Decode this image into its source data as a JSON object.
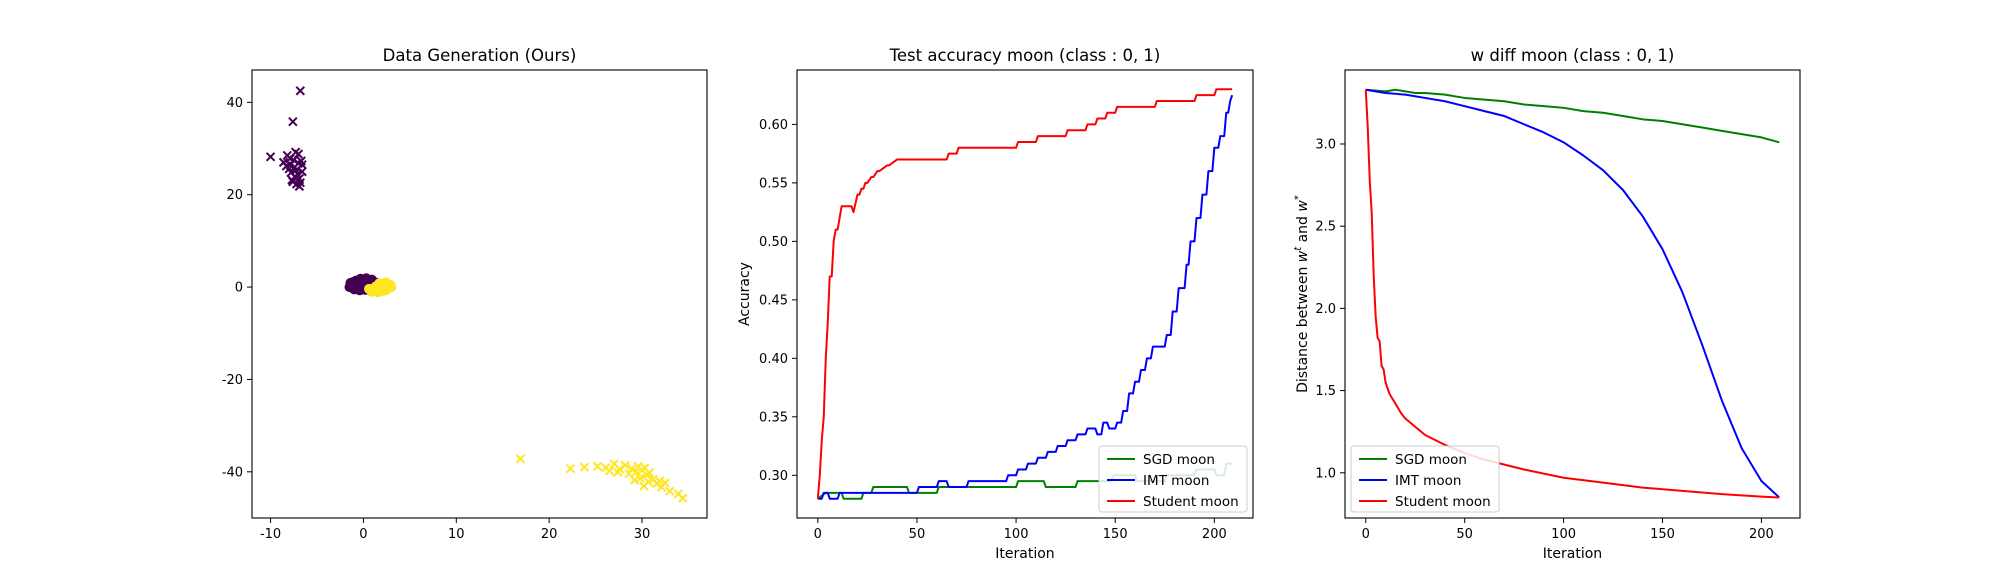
{
  "chart_data": [
    {
      "type": "scatter",
      "title": "Data Generation (Ours)",
      "xlabel": "",
      "ylabel": "",
      "xlim": [
        -12,
        37
      ],
      "ylim": [
        -50,
        47
      ],
      "xticks": [
        -10,
        0,
        10,
        20,
        30
      ],
      "yticks": [
        -40,
        -20,
        0,
        20,
        40
      ],
      "grid": false,
      "series": [
        {
          "marker": "o",
          "color": "#440154",
          "points": [
            [
              -1.2,
              0.6
            ],
            [
              -0.8,
              1.4
            ],
            [
              -0.3,
              1.8
            ],
            [
              0.3,
              1.9
            ],
            [
              0.9,
              1.6
            ],
            [
              1.3,
              1.0
            ],
            [
              -1.5,
              0.0
            ],
            [
              -1.0,
              -0.5
            ],
            [
              -0.4,
              -0.7
            ],
            [
              0.2,
              -0.6
            ],
            [
              0.7,
              -0.2
            ],
            [
              -0.6,
              0.4
            ],
            [
              0.0,
              0.9
            ],
            [
              0.5,
              1.2
            ],
            [
              -1.1,
              1.1
            ],
            [
              -0.2,
              0.2
            ],
            [
              1.0,
              0.4
            ],
            [
              -1.4,
              0.9
            ]
          ]
        },
        {
          "marker": "o",
          "color": "#fde725",
          "points": [
            [
              0.6,
              -0.4
            ],
            [
              1.1,
              -0.9
            ],
            [
              1.6,
              -1.1
            ],
            [
              2.2,
              -0.8
            ],
            [
              2.7,
              -0.2
            ],
            [
              2.9,
              0.5
            ],
            [
              2.4,
              1.0
            ],
            [
              1.9,
              0.3
            ],
            [
              1.3,
              0.1
            ],
            [
              0.9,
              -1.0
            ],
            [
              1.7,
              0.8
            ],
            [
              2.5,
              -0.6
            ],
            [
              1.4,
              -0.5
            ],
            [
              2.1,
              0.6
            ],
            [
              3.0,
              0.0
            ]
          ]
        },
        {
          "marker": "x",
          "color": "#440154",
          "points": [
            [
              -10,
              28.2
            ],
            [
              -6.8,
              42.5
            ],
            [
              -7.6,
              35.8
            ],
            [
              -8.6,
              27
            ],
            [
              -8.2,
              28.5
            ],
            [
              -7.9,
              26.5
            ],
            [
              -7.5,
              27.5
            ],
            [
              -7.3,
              25.2
            ],
            [
              -7.0,
              26.8
            ],
            [
              -6.7,
              27.3
            ],
            [
              -7.8,
              24.8
            ],
            [
              -7.4,
              23.9
            ],
            [
              -7.1,
              24.5
            ],
            [
              -6.9,
              23.5
            ],
            [
              -7.6,
              22.8
            ],
            [
              -7.2,
              22.3
            ],
            [
              -6.8,
              22.6
            ],
            [
              -7.0,
              28.8
            ],
            [
              -8.0,
              25.6
            ],
            [
              -7.3,
              29.2
            ],
            [
              -6.6,
              25.0
            ],
            [
              -7.7,
              23.2
            ],
            [
              -6.9,
              21.8
            ],
            [
              -7.4,
              26.0
            ],
            [
              -8.3,
              26.2
            ],
            [
              -7.9,
              27.8
            ],
            [
              -6.6,
              26.5
            ]
          ]
        },
        {
          "marker": "x",
          "color": "#fde725",
          "points": [
            [
              16.9,
              -37.2
            ],
            [
              22.3,
              -39.3
            ],
            [
              23.8,
              -39.0
            ],
            [
              25.2,
              -38.8
            ],
            [
              26.1,
              -39.1
            ],
            [
              27.0,
              -38.3
            ],
            [
              27.6,
              -39.4
            ],
            [
              28.2,
              -38.6
            ],
            [
              28.9,
              -39.3
            ],
            [
              29.4,
              -40.0
            ],
            [
              30.0,
              -39.6
            ],
            [
              30.5,
              -40.6
            ],
            [
              29.8,
              -41.4
            ],
            [
              30.7,
              -42.2
            ],
            [
              31.2,
              -41.6
            ],
            [
              31.6,
              -42.6
            ],
            [
              30.2,
              -43.1
            ],
            [
              32.1,
              -43.3
            ],
            [
              33.0,
              -44.2
            ],
            [
              33.9,
              -44.8
            ],
            [
              34.4,
              -45.7
            ],
            [
              27.4,
              -40.1
            ],
            [
              28.6,
              -40.4
            ],
            [
              29.2,
              -41.8
            ],
            [
              30.8,
              -40.2
            ],
            [
              31.9,
              -42.0
            ],
            [
              26.5,
              -39.8
            ],
            [
              29.6,
              -38.8
            ],
            [
              30.3,
              -39.2
            ],
            [
              32.5,
              -42.4
            ]
          ]
        }
      ]
    },
    {
      "type": "line",
      "title": "Test accuracy moon (class : 0, 1)",
      "xlabel": "Iteration",
      "ylabel": "Accuracy",
      "xlim": [
        -10.5,
        219.5
      ],
      "ylim": [
        0.2635,
        0.6465
      ],
      "xticks": [
        0,
        50,
        100,
        150,
        200
      ],
      "yticks": [
        0.3,
        0.35,
        0.4,
        0.45,
        0.5,
        0.55,
        0.6
      ],
      "grid": false,
      "legend": "lower-right",
      "series": [
        {
          "name": "SGD moon",
          "color": "#008000",
          "x": [
            0,
            4,
            12,
            13,
            22,
            23,
            27,
            28,
            45,
            46,
            60,
            61,
            70,
            71,
            85,
            86,
            100,
            101,
            114,
            115,
            130,
            131,
            148,
            149,
            160,
            161,
            175,
            176,
            190,
            191,
            200,
            201,
            205,
            206,
            209
          ],
          "y": [
            0.28,
            0.285,
            0.285,
            0.28,
            0.28,
            0.285,
            0.285,
            0.29,
            0.29,
            0.285,
            0.285,
            0.29,
            0.29,
            0.29,
            0.29,
            0.29,
            0.29,
            0.295,
            0.295,
            0.29,
            0.29,
            0.295,
            0.295,
            0.3,
            0.3,
            0.295,
            0.295,
            0.3,
            0.3,
            0.305,
            0.305,
            0.3,
            0.3,
            0.31,
            0.31
          ]
        },
        {
          "name": "IMT moon",
          "color": "#0000ff",
          "x": [
            0,
            2,
            3,
            5,
            6,
            10,
            11,
            20,
            21,
            35,
            36,
            50,
            51,
            60,
            61,
            65,
            66,
            75,
            76,
            85,
            86,
            95,
            96,
            100,
            101,
            105,
            106,
            110,
            111,
            115,
            116,
            120,
            121,
            125,
            126,
            130,
            131,
            135,
            136,
            140,
            141,
            143,
            144,
            146,
            147,
            150,
            151,
            153,
            154,
            156,
            157,
            159,
            160,
            162,
            163,
            165,
            166,
            168,
            169,
            171,
            172,
            175,
            176,
            178,
            179,
            181,
            182,
            185,
            186,
            187,
            188,
            190,
            191,
            193,
            194,
            196,
            197,
            199,
            200,
            202,
            203,
            205,
            206,
            207,
            208,
            209
          ],
          "y": [
            0.28,
            0.28,
            0.285,
            0.285,
            0.28,
            0.28,
            0.285,
            0.285,
            0.285,
            0.285,
            0.285,
            0.285,
            0.29,
            0.29,
            0.295,
            0.295,
            0.29,
            0.29,
            0.295,
            0.295,
            0.295,
            0.295,
            0.3,
            0.3,
            0.305,
            0.305,
            0.31,
            0.31,
            0.315,
            0.315,
            0.32,
            0.32,
            0.325,
            0.325,
            0.33,
            0.33,
            0.335,
            0.335,
            0.34,
            0.34,
            0.335,
            0.335,
            0.345,
            0.345,
            0.34,
            0.34,
            0.345,
            0.345,
            0.355,
            0.355,
            0.37,
            0.37,
            0.38,
            0.38,
            0.39,
            0.39,
            0.4,
            0.4,
            0.41,
            0.41,
            0.41,
            0.41,
            0.42,
            0.42,
            0.44,
            0.44,
            0.46,
            0.46,
            0.48,
            0.48,
            0.5,
            0.5,
            0.52,
            0.52,
            0.54,
            0.54,
            0.56,
            0.56,
            0.58,
            0.58,
            0.59,
            0.59,
            0.61,
            0.61,
            0.62,
            0.625
          ]
        },
        {
          "name": "Student moon",
          "color": "#ff0000",
          "x": [
            0,
            1,
            2,
            3,
            4,
            5,
            6,
            7,
            8,
            9,
            10,
            11,
            12,
            13,
            14,
            15,
            16,
            17,
            18,
            20,
            21,
            22,
            23,
            24,
            25,
            27,
            28,
            30,
            31,
            35,
            36,
            40,
            41,
            45,
            46,
            65,
            66,
            70,
            71,
            100,
            101,
            110,
            111,
            125,
            126,
            135,
            136,
            140,
            141,
            145,
            146,
            150,
            151,
            165,
            166,
            170,
            171,
            190,
            191,
            200,
            201,
            209
          ],
          "y": [
            0.28,
            0.3,
            0.33,
            0.35,
            0.4,
            0.43,
            0.47,
            0.47,
            0.5,
            0.51,
            0.51,
            0.52,
            0.53,
            0.53,
            0.53,
            0.53,
            0.53,
            0.53,
            0.525,
            0.54,
            0.54,
            0.545,
            0.545,
            0.55,
            0.55,
            0.555,
            0.555,
            0.56,
            0.56,
            0.565,
            0.565,
            0.57,
            0.57,
            0.57,
            0.57,
            0.57,
            0.575,
            0.575,
            0.58,
            0.58,
            0.585,
            0.585,
            0.59,
            0.59,
            0.595,
            0.595,
            0.6,
            0.6,
            0.605,
            0.605,
            0.61,
            0.61,
            0.615,
            0.615,
            0.615,
            0.615,
            0.62,
            0.62,
            0.625,
            0.625,
            0.63,
            0.63
          ]
        }
      ]
    },
    {
      "type": "line",
      "title": "w diff moon (class : 0, 1)",
      "xlabel": "Iteration",
      "ylabel": "Distance between w^t and w^*",
      "ylabel_parts": {
        "prefix": "Distance between ",
        "var1": "w",
        "sup1": "t",
        "middle": " and ",
        "var2": "w",
        "sup2": "*"
      },
      "xlim": [
        -10.5,
        219.5
      ],
      "ylim": [
        0.725,
        3.45
      ],
      "xticks": [
        0,
        50,
        100,
        150,
        200
      ],
      "yticks": [
        1.0,
        1.5,
        2.0,
        2.5,
        3.0
      ],
      "grid": false,
      "legend": "lower-left",
      "series": [
        {
          "name": "SGD moon",
          "color": "#008000",
          "x": [
            0,
            10,
            15,
            20,
            25,
            30,
            40,
            50,
            60,
            70,
            80,
            90,
            100,
            110,
            120,
            130,
            140,
            150,
            160,
            170,
            180,
            190,
            200,
            209
          ],
          "y": [
            3.33,
            3.32,
            3.33,
            3.32,
            3.31,
            3.31,
            3.3,
            3.28,
            3.27,
            3.26,
            3.24,
            3.23,
            3.22,
            3.2,
            3.19,
            3.17,
            3.15,
            3.14,
            3.12,
            3.1,
            3.08,
            3.06,
            3.04,
            3.01
          ]
        },
        {
          "name": "IMT moon",
          "color": "#0000ff",
          "x": [
            0,
            10,
            20,
            30,
            40,
            50,
            60,
            70,
            80,
            90,
            100,
            110,
            120,
            130,
            140,
            150,
            160,
            170,
            180,
            190,
            200,
            209
          ],
          "y": [
            3.33,
            3.31,
            3.3,
            3.28,
            3.26,
            3.23,
            3.2,
            3.17,
            3.12,
            3.07,
            3.01,
            2.93,
            2.84,
            2.72,
            2.56,
            2.36,
            2.1,
            1.78,
            1.44,
            1.15,
            0.95,
            0.85
          ]
        },
        {
          "name": "Student moon",
          "color": "#ff0000",
          "x": [
            0,
            1,
            2,
            3,
            4,
            5,
            6,
            7,
            8,
            9,
            10,
            12,
            14,
            16,
            18,
            20,
            25,
            30,
            40,
            50,
            60,
            80,
            100,
            120,
            140,
            160,
            180,
            200,
            209
          ],
          "y": [
            3.33,
            3.1,
            2.78,
            2.58,
            2.2,
            1.95,
            1.82,
            1.8,
            1.65,
            1.63,
            1.55,
            1.48,
            1.44,
            1.4,
            1.36,
            1.33,
            1.28,
            1.23,
            1.17,
            1.12,
            1.08,
            1.02,
            0.97,
            0.94,
            0.91,
            0.89,
            0.87,
            0.855,
            0.85
          ]
        }
      ]
    }
  ]
}
